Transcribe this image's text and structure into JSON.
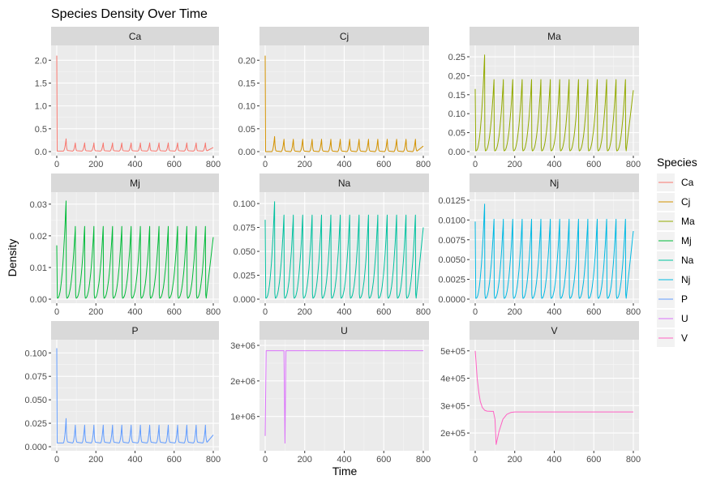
{
  "chart_data": {
    "type": "line",
    "title": "Species Density Over Time",
    "xlabel": "Time",
    "ylabel": "Density",
    "legend": {
      "title": "Species",
      "placement": "right"
    },
    "grid": true,
    "facets": [
      {
        "name": "Ca",
        "color": "#F8766D",
        "xlim": [
          0,
          800
        ],
        "ylim": [
          0,
          2.2
        ],
        "yticks": [
          0,
          0.5,
          1.0,
          1.5,
          2.0
        ],
        "ytick_labels": [
          "0.0",
          "0.5",
          "1.0",
          "1.5",
          "2.0"
        ],
        "pattern": "spikes",
        "start": 2.1,
        "first_peak": 0.28,
        "peak": 0.19,
        "trough": 0.01
      },
      {
        "name": "Cj",
        "color": "#D39200",
        "xlim": [
          0,
          800
        ],
        "ylim": [
          0,
          0.22
        ],
        "yticks": [
          0,
          0.05,
          0.1,
          0.15,
          0.2
        ],
        "ytick_labels": [
          "0.00",
          "0.05",
          "0.10",
          "0.15",
          "0.20"
        ],
        "pattern": "spikes",
        "start": 0.21,
        "first_peak": 0.033,
        "peak": 0.027,
        "trough": 0.0
      },
      {
        "name": "Ma",
        "color": "#93AA00",
        "xlim": [
          0,
          800
        ],
        "ylim": [
          0,
          0.265
        ],
        "yticks": [
          0,
          0.05,
          0.1,
          0.15,
          0.2,
          0.25
        ],
        "ytick_labels": [
          "0.00",
          "0.05",
          "0.10",
          "0.15",
          "0.20",
          "0.25"
        ],
        "pattern": "cycles",
        "start": 0.165,
        "first_peak": 0.255,
        "peak": 0.19,
        "trough": 0.002
      },
      {
        "name": "Mj",
        "color": "#00BA38",
        "xlim": [
          0,
          800
        ],
        "ylim": [
          0,
          0.032
        ],
        "yticks": [
          0,
          0.01,
          0.02,
          0.03
        ],
        "ytick_labels": [
          "0.00",
          "0.01",
          "0.02",
          "0.03"
        ],
        "pattern": "cycles",
        "start": 0.017,
        "first_peak": 0.031,
        "peak": 0.023,
        "trough": 0.0003
      },
      {
        "name": "Na",
        "color": "#00C19F",
        "xlim": [
          0,
          800
        ],
        "ylim": [
          0,
          0.106
        ],
        "yticks": [
          0,
          0.025,
          0.05,
          0.075,
          0.1
        ],
        "ytick_labels": [
          "0.000",
          "0.025",
          "0.050",
          "0.075",
          "0.100"
        ],
        "pattern": "cycles",
        "start": 0.083,
        "first_peak": 0.102,
        "peak": 0.088,
        "trough": 0.001
      },
      {
        "name": "Nj",
        "color": "#00B9E3",
        "xlim": [
          0,
          800
        ],
        "ylim": [
          0,
          0.0128
        ],
        "yticks": [
          0,
          0.0025,
          0.005,
          0.0075,
          0.01,
          0.0125
        ],
        "ytick_labels": [
          "0.0000",
          "0.0025",
          "0.0050",
          "0.0075",
          "0.0100",
          "0.0125"
        ],
        "pattern": "cycles",
        "start": 0.0098,
        "first_peak": 0.012,
        "peak": 0.0101,
        "trough": 0.0001
      },
      {
        "name": "P",
        "color": "#619CFF",
        "xlim": [
          0,
          800
        ],
        "ylim": [
          0,
          0.108
        ],
        "yticks": [
          0,
          0.025,
          0.05,
          0.075,
          0.1
        ],
        "ytick_labels": [
          "0.000",
          "0.025",
          "0.050",
          "0.075",
          "0.100"
        ],
        "pattern": "spikes",
        "start": 0.105,
        "first_peak": 0.03,
        "peak": 0.023,
        "trough": 0.004
      },
      {
        "name": "U",
        "color": "#DB72FB",
        "xlim": [
          0,
          800
        ],
        "ylim": [
          150000,
          3000000
        ],
        "yticks": [
          1000000,
          2000000,
          3000000
        ],
        "ytick_labels": [
          "1e+06",
          "2e+06",
          "3e+06"
        ],
        "pattern": "U",
        "points": [
          [
            0,
            450000
          ],
          [
            5,
            2850000
          ],
          [
            95,
            2850000
          ],
          [
            100,
            250000
          ],
          [
            105,
            2850000
          ],
          [
            800,
            2850000
          ]
        ]
      },
      {
        "name": "V",
        "color": "#FF61C3",
        "xlim": [
          0,
          800
        ],
        "ylim": [
          150000,
          520000
        ],
        "yticks": [
          200000,
          300000,
          400000,
          500000
        ],
        "ytick_labels": [
          "2e+05",
          "3e+05",
          "4e+05",
          "5e+05"
        ],
        "pattern": "V",
        "points": [
          [
            0,
            500000
          ],
          [
            4,
            460000
          ],
          [
            10,
            400000
          ],
          [
            18,
            350000
          ],
          [
            26,
            315000
          ],
          [
            36,
            293000
          ],
          [
            48,
            283000
          ],
          [
            60,
            280000
          ],
          [
            80,
            279000
          ],
          [
            92,
            279000
          ],
          [
            100,
            250000
          ],
          [
            106,
            158000
          ],
          [
            120,
            205000
          ],
          [
            140,
            250000
          ],
          [
            160,
            268000
          ],
          [
            180,
            275000
          ],
          [
            200,
            277000
          ],
          [
            800,
            277000
          ]
        ]
      }
    ],
    "xticks": [
      0,
      200,
      400,
      600,
      800
    ],
    "xtick_labels": [
      "0",
      "200",
      "400",
      "600",
      "800"
    ],
    "cycle_period": 47.5
  }
}
